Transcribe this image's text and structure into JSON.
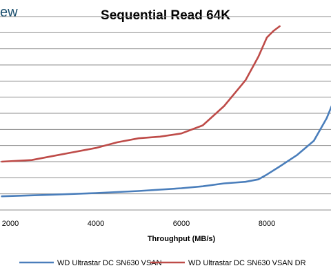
{
  "header": {
    "logo_text": "ew"
  },
  "chart_data": {
    "type": "line",
    "title": "Sequential Read 64K",
    "xlabel": "Throughput (MB/s)",
    "ylabel": "",
    "x_ticks": [
      2000,
      4000,
      6000,
      8000
    ],
    "xlim": [
      1800,
      9700
    ],
    "ylim": [
      0,
      12
    ],
    "grid": true,
    "legend_position": "bottom",
    "series": [
      {
        "name": "WD Ultrastar DC SN630 VSAN",
        "color": "#4a7ebb",
        "points": [
          [
            1800,
            0.85
          ],
          [
            3000,
            0.95
          ],
          [
            4000,
            1.05
          ],
          [
            5000,
            1.18
          ],
          [
            6000,
            1.35
          ],
          [
            6500,
            1.47
          ],
          [
            7000,
            1.65
          ],
          [
            7500,
            1.75
          ],
          [
            7800,
            1.9
          ],
          [
            8000,
            2.2
          ],
          [
            8300,
            2.7
          ],
          [
            8700,
            3.4
          ],
          [
            9100,
            4.3
          ],
          [
            9400,
            5.7
          ],
          [
            9600,
            7.0
          ],
          [
            9700,
            7.7
          ]
        ]
      },
      {
        "name": "WD Ultrastar DC SN630 VSAN DR",
        "color": "#be4b48",
        "points": [
          [
            1800,
            3.0
          ],
          [
            2500,
            3.1
          ],
          [
            3000,
            3.35
          ],
          [
            3500,
            3.6
          ],
          [
            4000,
            3.85
          ],
          [
            4500,
            4.2
          ],
          [
            5000,
            4.45
          ],
          [
            5500,
            4.55
          ],
          [
            6000,
            4.75
          ],
          [
            6500,
            5.25
          ],
          [
            7000,
            6.45
          ],
          [
            7500,
            8.05
          ],
          [
            7800,
            9.5
          ],
          [
            8000,
            10.7
          ],
          [
            8150,
            11.1
          ],
          [
            8300,
            11.4
          ]
        ]
      }
    ]
  }
}
